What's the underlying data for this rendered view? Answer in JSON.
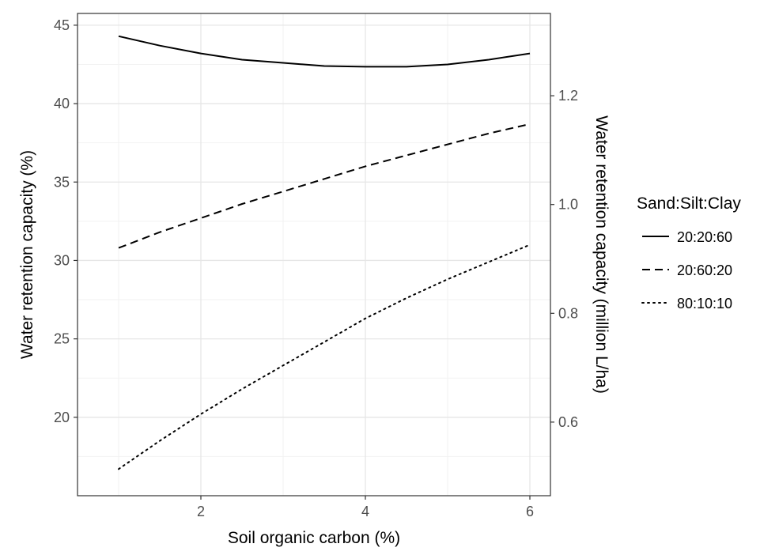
{
  "chart_data": {
    "type": "line",
    "xlabel": "Soil organic carbon (%)",
    "ylabel": "Water retention capacity (%)",
    "y2label": "Water retention capacity (million L/ha)",
    "xlim": [
      0.5,
      6.25
    ],
    "ylim": [
      15.0,
      45.75
    ],
    "y2lim": [
      0.4647,
      1.3513
    ],
    "x_ticks": [
      2,
      4,
      6
    ],
    "y_ticks": [
      20,
      25,
      30,
      35,
      40,
      45
    ],
    "y2_ticks": [
      0.6,
      0.8,
      1.0,
      1.2
    ],
    "grid": true,
    "legend": {
      "title": "Sand:Silt:Clay",
      "position": "right"
    },
    "series": [
      {
        "name": "20:20:60",
        "linetype": "solid",
        "color": "#000000",
        "x": [
          1,
          1.5,
          2,
          2.5,
          3,
          3.5,
          4,
          4.5,
          5,
          5.5,
          6
        ],
        "y": [
          44.3,
          43.7,
          43.2,
          42.8,
          42.6,
          42.4,
          42.35,
          42.35,
          42.5,
          42.8,
          43.2
        ]
      },
      {
        "name": "20:60:20",
        "linetype": "dashed",
        "color": "#000000",
        "x": [
          1,
          1.5,
          2,
          2.5,
          3,
          3.5,
          4,
          4.5,
          5,
          5.5,
          6
        ],
        "y": [
          30.8,
          31.8,
          32.7,
          33.6,
          34.4,
          35.2,
          36.0,
          36.7,
          37.4,
          38.1,
          38.7
        ]
      },
      {
        "name": "80:10:10",
        "linetype": "dotted",
        "color": "#000000",
        "x": [
          1,
          1.5,
          2,
          2.5,
          3,
          3.5,
          4,
          4.5,
          5,
          5.5,
          6
        ],
        "y": [
          16.7,
          18.5,
          20.2,
          21.8,
          23.3,
          24.8,
          26.3,
          27.6,
          28.8,
          29.9,
          31.0
        ]
      }
    ]
  }
}
